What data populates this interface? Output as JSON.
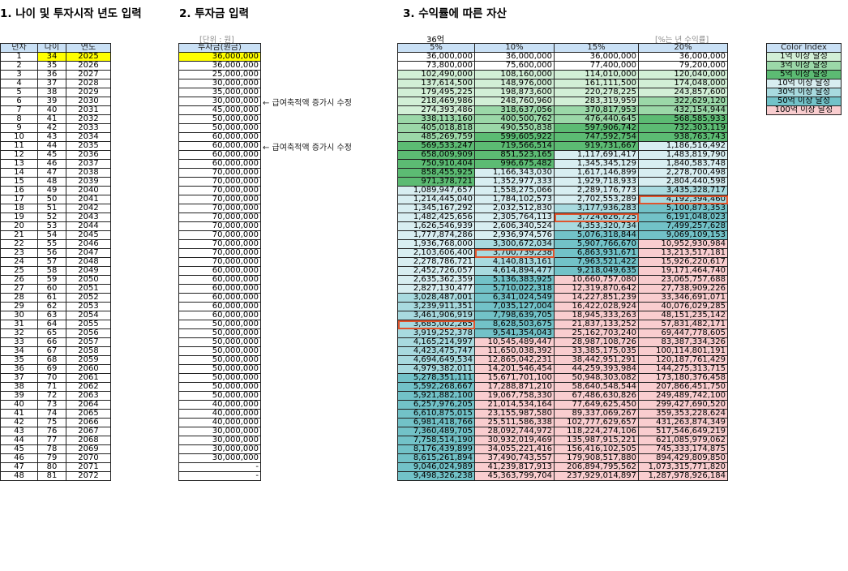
{
  "titles": {
    "t1": "1. 나이 및 투자시작 년도 입력",
    "t2": "2. 투자금 입력",
    "t3": "3. 수익률에 따른 자산"
  },
  "notes": {
    "unit": "[단위 : 원]",
    "target": "36억",
    "rate_caption": "[%는 년 수익률]"
  },
  "ageTable": {
    "headers": [
      "년차",
      "나이",
      "연도"
    ],
    "rows": [
      [
        "1",
        "34",
        "2025"
      ],
      [
        "2",
        "35",
        "2026"
      ],
      [
        "3",
        "36",
        "2027"
      ],
      [
        "4",
        "37",
        "2028"
      ],
      [
        "5",
        "38",
        "2029"
      ],
      [
        "6",
        "39",
        "2030"
      ],
      [
        "7",
        "40",
        "2031"
      ],
      [
        "8",
        "41",
        "2032"
      ],
      [
        "9",
        "42",
        "2033"
      ],
      [
        "10",
        "43",
        "2034"
      ],
      [
        "11",
        "44",
        "2035"
      ],
      [
        "12",
        "45",
        "2036"
      ],
      [
        "13",
        "46",
        "2037"
      ],
      [
        "14",
        "47",
        "2038"
      ],
      [
        "15",
        "48",
        "2039"
      ],
      [
        "16",
        "49",
        "2040"
      ],
      [
        "17",
        "50",
        "2041"
      ],
      [
        "18",
        "51",
        "2042"
      ],
      [
        "19",
        "52",
        "2043"
      ],
      [
        "20",
        "53",
        "2044"
      ],
      [
        "21",
        "54",
        "2045"
      ],
      [
        "22",
        "55",
        "2046"
      ],
      [
        "23",
        "56",
        "2047"
      ],
      [
        "24",
        "57",
        "2048"
      ],
      [
        "25",
        "58",
        "2049"
      ],
      [
        "26",
        "59",
        "2050"
      ],
      [
        "27",
        "60",
        "2051"
      ],
      [
        "28",
        "61",
        "2052"
      ],
      [
        "29",
        "62",
        "2053"
      ],
      [
        "30",
        "63",
        "2054"
      ],
      [
        "31",
        "64",
        "2055"
      ],
      [
        "32",
        "65",
        "2056"
      ],
      [
        "33",
        "66",
        "2057"
      ],
      [
        "34",
        "67",
        "2058"
      ],
      [
        "35",
        "68",
        "2059"
      ],
      [
        "36",
        "69",
        "2060"
      ],
      [
        "37",
        "70",
        "2061"
      ],
      [
        "38",
        "71",
        "2062"
      ],
      [
        "39",
        "72",
        "2063"
      ],
      [
        "40",
        "73",
        "2064"
      ],
      [
        "41",
        "74",
        "2065"
      ],
      [
        "42",
        "75",
        "2066"
      ],
      [
        "43",
        "76",
        "2067"
      ],
      [
        "44",
        "77",
        "2068"
      ],
      [
        "45",
        "78",
        "2069"
      ],
      [
        "46",
        "79",
        "2070"
      ],
      [
        "47",
        "80",
        "2071"
      ],
      [
        "48",
        "81",
        "2072"
      ]
    ]
  },
  "investTable": {
    "header": "투자금(원금)",
    "values": [
      "36,000,000",
      "36,000,000",
      "25,000,000",
      "30,000,000",
      "35,000,000",
      "30,000,000",
      "45,000,000",
      "50,000,000",
      "50,000,000",
      "60,000,000",
      "60,000,000",
      "60,000,000",
      "60,000,000",
      "70,000,000",
      "70,000,000",
      "70,000,000",
      "70,000,000",
      "70,000,000",
      "70,000,000",
      "70,000,000",
      "70,000,000",
      "70,000,000",
      "70,000,000",
      "70,000,000",
      "60,000,000",
      "60,000,000",
      "60,000,000",
      "60,000,000",
      "60,000,000",
      "60,000,000",
      "50,000,000",
      "50,000,000",
      "50,000,000",
      "50,000,000",
      "50,000,000",
      "50,000,000",
      "50,000,000",
      "50,000,000",
      "50,000,000",
      "40,000,000",
      "40,000,000",
      "40,000,000",
      "30,000,000",
      "30,000,000",
      "30,000,000",
      "30,000,000",
      "-",
      "-"
    ],
    "arrows": [
      {
        "row": 5,
        "text": "← 급여축적액 증가시 수정"
      },
      {
        "row": 10,
        "text": "← 급여축적액 증가시 수정"
      }
    ]
  },
  "assetTable": {
    "headers": [
      "5%",
      "10%",
      "15%",
      "20%"
    ],
    "rows": [
      [
        "36,000,000",
        "36,000,000",
        "36,000,000",
        "36,000,000"
      ],
      [
        "73,800,000",
        "75,600,000",
        "77,400,000",
        "79,200,000"
      ],
      [
        "102,490,000",
        "108,160,000",
        "114,010,000",
        "120,040,000"
      ],
      [
        "137,614,500",
        "148,976,000",
        "161,111,500",
        "174,048,000"
      ],
      [
        "179,495,225",
        "198,873,600",
        "220,278,225",
        "243,857,600"
      ],
      [
        "218,469,986",
        "248,760,960",
        "283,319,959",
        "322,629,120"
      ],
      [
        "274,393,486",
        "318,637,056",
        "370,817,953",
        "432,154,944"
      ],
      [
        "338,113,160",
        "400,500,762",
        "476,440,645",
        "568,585,933"
      ],
      [
        "405,018,818",
        "490,550,838",
        "597,906,742",
        "732,303,119"
      ],
      [
        "485,269,759",
        "599,605,922",
        "747,592,754",
        "938,763,743"
      ],
      [
        "569,533,247",
        "719,566,514",
        "919,731,667",
        "1,186,516,492"
      ],
      [
        "658,009,909",
        "851,523,165",
        "1,117,691,417",
        "1,483,819,790"
      ],
      [
        "750,910,404",
        "996,675,482",
        "1,345,345,129",
        "1,840,583,748"
      ],
      [
        "858,455,925",
        "1,166,343,030",
        "1,617,146,899",
        "2,278,700,498"
      ],
      [
        "971,378,721",
        "1,352,977,333",
        "1,929,718,933",
        "2,804,440,598"
      ],
      [
        "1,089,947,657",
        "1,558,275,066",
        "2,289,176,773",
        "3,435,328,717"
      ],
      [
        "1,214,445,040",
        "1,784,102,573",
        "2,702,553,289",
        "4,192,394,460"
      ],
      [
        "1,345,167,292",
        "2,032,512,830",
        "3,177,936,283",
        "5,100,873,353"
      ],
      [
        "1,482,425,656",
        "2,305,764,113",
        "3,724,626,725",
        "6,191,048,023"
      ],
      [
        "1,626,546,939",
        "2,606,340,524",
        "4,353,320,734",
        "7,499,257,628"
      ],
      [
        "1,777,874,286",
        "2,936,974,576",
        "5,076,318,844",
        "9,069,109,153"
      ],
      [
        "1,936,768,000",
        "3,300,672,034",
        "5,907,766,670",
        "10,952,930,984"
      ],
      [
        "2,103,606,400",
        "3,700,739,238",
        "6,863,931,671",
        "13,213,517,181"
      ],
      [
        "2,278,786,721",
        "4,140,813,161",
        "7,963,521,422",
        "15,926,220,617"
      ],
      [
        "2,452,726,057",
        "4,614,894,477",
        "9,218,049,635",
        "19,171,464,740"
      ],
      [
        "2,635,362,359",
        "5,136,383,925",
        "10,660,757,080",
        "23,065,757,688"
      ],
      [
        "2,827,130,477",
        "5,710,022,318",
        "12,319,870,642",
        "27,738,909,226"
      ],
      [
        "3,028,487,001",
        "6,341,024,549",
        "14,227,851,239",
        "33,346,691,071"
      ],
      [
        "3,239,911,351",
        "7,035,127,004",
        "16,422,028,924",
        "40,076,029,285"
      ],
      [
        "3,461,906,919",
        "7,798,639,705",
        "18,945,333,263",
        "48,151,235,142"
      ],
      [
        "3,685,002,265",
        "8,628,503,675",
        "21,837,133,252",
        "57,831,482,171"
      ],
      [
        "3,919,252,378",
        "9,541,354,043",
        "25,162,703,240",
        "69,447,778,605"
      ],
      [
        "4,165,214,997",
        "10,545,489,447",
        "28,987,108,726",
        "83,387,334,326"
      ],
      [
        "4,423,475,747",
        "11,650,038,392",
        "33,385,175,035",
        "100,114,801,191"
      ],
      [
        "4,694,649,534",
        "12,865,042,231",
        "38,442,951,291",
        "120,187,761,429"
      ],
      [
        "4,979,382,011",
        "14,201,546,454",
        "44,259,393,984",
        "144,275,313,715"
      ],
      [
        "5,278,351,111",
        "15,671,701,100",
        "50,948,303,082",
        "173,180,376,458"
      ],
      [
        "5,592,268,667",
        "17,288,871,210",
        "58,640,548,544",
        "207,866,451,750"
      ],
      [
        "5,921,882,100",
        "19,067,758,330",
        "67,486,630,826",
        "249,489,742,100"
      ],
      [
        "6,257,976,205",
        "21,014,534,164",
        "77,649,625,450",
        "299,427,690,520"
      ],
      [
        "6,610,875,015",
        "23,155,987,580",
        "89,337,069,267",
        "359,353,228,624"
      ],
      [
        "6,981,418,766",
        "25,511,586,338",
        "102,777,629,657",
        "431,263,874,349"
      ],
      [
        "7,360,489,705",
        "28,092,744,972",
        "118,224,274,106",
        "517,546,649,219"
      ],
      [
        "7,758,514,190",
        "30,932,019,469",
        "135,987,915,221",
        "621,085,979,062"
      ],
      [
        "8,176,439,899",
        "34,055,221,416",
        "156,416,102,505",
        "745,333,174,875"
      ],
      [
        "8,615,261,894",
        "37,490,743,557",
        "179,908,517,880",
        "894,429,809,850"
      ],
      [
        "9,046,024,989",
        "41,239,817,913",
        "206,894,795,562",
        "1,073,315,771,820"
      ],
      [
        "9,498,326,238",
        "45,363,799,704",
        "237,929,014,897",
        "1,287,978,926,184"
      ]
    ],
    "marked": [
      [
        16,
        3
      ],
      [
        18,
        2
      ],
      [
        22,
        1
      ],
      [
        30,
        0
      ]
    ]
  },
  "legend": {
    "header": "Color Index",
    "items": [
      {
        "label": "1억 이상 달성",
        "cls": "lv1"
      },
      {
        "label": "3억 이상 달성",
        "cls": "lv3"
      },
      {
        "label": "5억 이상 달성",
        "cls": "lv5"
      },
      {
        "label": "10억 이상 달성",
        "cls": "lv10"
      },
      {
        "label": "30억 이상 달성",
        "cls": "lv30"
      },
      {
        "label": "50억 이상 달성",
        "cls": "lv50"
      },
      {
        "label": "100억 이상 달성",
        "cls": "lv100"
      }
    ]
  },
  "colors": {
    "header_bg": "#c9e0f5",
    "highlight": "#ffff00",
    "mark_border": "#e0542d"
  }
}
